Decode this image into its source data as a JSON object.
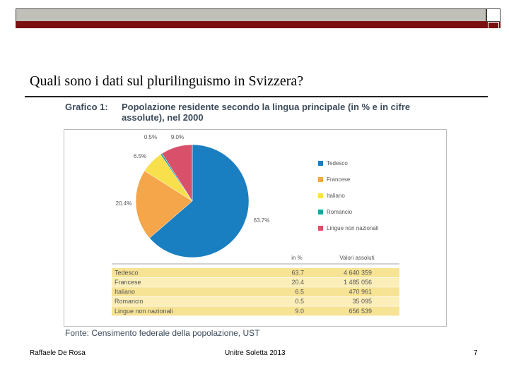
{
  "slide_title": "Quali sono i dati sul plurilinguismo in Svizzera?",
  "footer": {
    "author": "Raffaele De Rosa",
    "event": "Unitre Soletta 2013",
    "page": "7"
  },
  "chart_data": {
    "type": "pie",
    "figure_label": "Grafico 1:",
    "title": "Popolazione residente secondo la lingua principale (in % e in cifre assolute), nel 2000",
    "categories": [
      "Tedesco",
      "Francese",
      "Italiano",
      "Romancio",
      "Lingue non nazionali"
    ],
    "values": [
      63.7,
      20.4,
      6.5,
      0.5,
      9.0
    ],
    "value_labels": [
      "63.7%",
      "20.4%",
      "6.5%",
      "0.5%",
      "9.0%"
    ],
    "colors": [
      "#1a7fc1",
      "#f5a54a",
      "#f7e04c",
      "#1aa6a0",
      "#d9506a"
    ],
    "legend": "right",
    "source": "Fonte: Censimento federale della popolazione, UST"
  },
  "table": {
    "header": [
      "in %",
      "Valori assoluti"
    ],
    "rows": [
      [
        "Tedesco",
        "63.7",
        "4 640 359"
      ],
      [
        "Francese",
        "20.4",
        "1 485 056"
      ],
      [
        "Italiano",
        "6.5",
        "470 961"
      ],
      [
        "Romancio",
        "0.5",
        "35 095"
      ],
      [
        "Lingue non nazionali",
        "9.0",
        "656 539"
      ]
    ]
  }
}
